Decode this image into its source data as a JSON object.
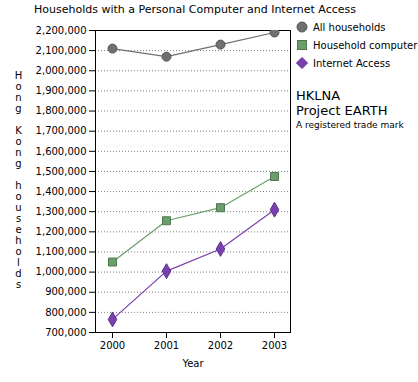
{
  "chart_data": {
    "type": "line",
    "title": "Households with a Personal Computer and Internet Access",
    "x_label": "Year",
    "y_label": "Hong Kong households",
    "x": [
      2000,
      2001,
      2002,
      2003
    ],
    "series": [
      {
        "name": "All households",
        "color": "#707070",
        "marker": "circle",
        "values": [
          2110000,
          2070000,
          2130000,
          2190000
        ]
      },
      {
        "name": "Household computer",
        "color": "#6a9e6a",
        "marker": "square",
        "values": [
          1050000,
          1255000,
          1320000,
          1475000
        ]
      },
      {
        "name": "Internet Access",
        "color": "#7a3fb0",
        "marker": "diamond",
        "values": [
          765000,
          1005000,
          1115000,
          1310000
        ]
      }
    ],
    "ylim": [
      700000,
      2200000
    ],
    "yticks": [
      {
        "value": 700000,
        "label": "700,000"
      },
      {
        "value": 800000,
        "label": "800,000"
      },
      {
        "value": 900000,
        "label": "900,000"
      },
      {
        "value": 1000000,
        "label": "1,000,000"
      },
      {
        "value": 1100000,
        "label": "1,100,000"
      },
      {
        "value": 1200000,
        "label": "1,200,000"
      },
      {
        "value": 1300000,
        "label": "1,300,000"
      },
      {
        "value": 1400000,
        "label": "1,400,000"
      },
      {
        "value": 1500000,
        "label": "1,500,000"
      },
      {
        "value": 1600000,
        "label": "1,600,000"
      },
      {
        "value": 1700000,
        "label": "1,700,000"
      },
      {
        "value": 1800000,
        "label": "1,800,000"
      },
      {
        "value": 1900000,
        "label": "1,900,000"
      },
      {
        "value": 2000000,
        "label": "2,000,000"
      },
      {
        "value": 2100000,
        "label": "2,100,000"
      },
      {
        "value": 2200000,
        "label": "2,200,000"
      }
    ],
    "grid": true,
    "legend": "top-right",
    "annotations": [
      "HKLNA",
      "Project EARTH",
      "A registered trade mark"
    ]
  }
}
